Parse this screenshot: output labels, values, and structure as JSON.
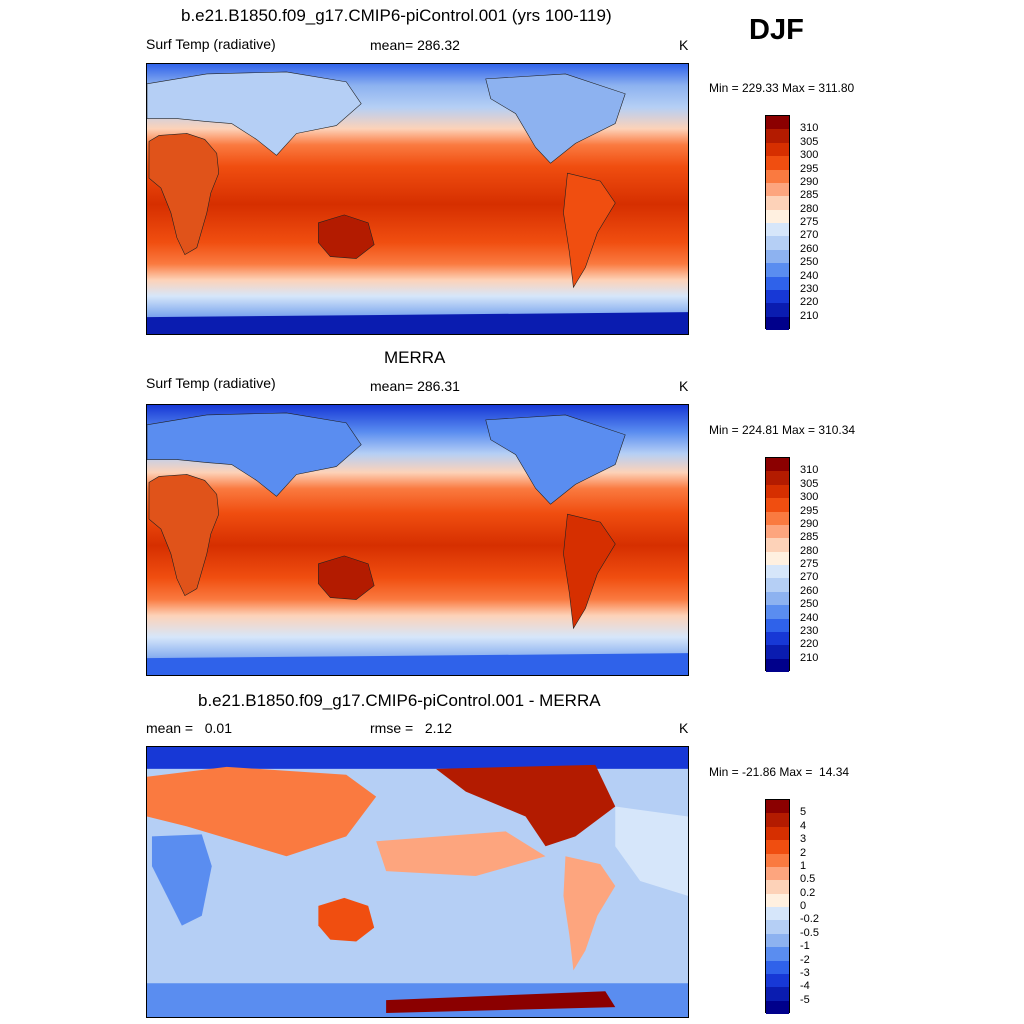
{
  "season": "DJF",
  "panels": [
    {
      "title": "b.e21.B1850.f09_g17.CMIP6-piControl.001 (yrs 100-119)",
      "left_label": "Surf Temp (radiative)",
      "center_label": "mean= 286.32",
      "units": "K",
      "minmax": "Min = 229.33 Max = 311.80"
    },
    {
      "title": "MERRA",
      "left_label": "Surf Temp (radiative)",
      "center_label": "mean= 286.31",
      "units": "K",
      "minmax": "Min = 224.81 Max = 310.34"
    },
    {
      "title": "b.e21.B1850.f09_g17.CMIP6-piControl.001 - MERRA",
      "left_label": "mean =   0.01",
      "center_label": "rmse =   2.12",
      "units": "K",
      "minmax": "Min = -21.86 Max =  14.34"
    }
  ],
  "colorbar_abs": {
    "labels": [
      "310",
      "305",
      "300",
      "295",
      "290",
      "285",
      "280",
      "275",
      "270",
      "260",
      "250",
      "240",
      "230",
      "220",
      "210"
    ],
    "colors": [
      "#8b0000",
      "#b31b00",
      "#d62f00",
      "#f04e10",
      "#fa7a40",
      "#fda57e",
      "#fdd2b8",
      "#fff0e0",
      "#d6e6fa",
      "#b5cff5",
      "#8db2f0",
      "#5a8df0",
      "#2f62ea",
      "#1738d6",
      "#0a1cb0",
      "#00008b"
    ]
  },
  "colorbar_diff": {
    "labels": [
      "5",
      "4",
      "3",
      "2",
      "1",
      "0.5",
      "0.2",
      "0",
      "-0.2",
      "-0.5",
      "-1",
      "-2",
      "-3",
      "-4",
      "-5"
    ],
    "colors": [
      "#8b0000",
      "#b31b00",
      "#d62f00",
      "#f04e10",
      "#fa7a40",
      "#fda57e",
      "#fdd2b8",
      "#fff0e0",
      "#d6e6fa",
      "#b5cff5",
      "#8db2f0",
      "#5a8df0",
      "#2f62ea",
      "#1738d6",
      "#0a1cb0",
      "#00008b"
    ]
  }
}
